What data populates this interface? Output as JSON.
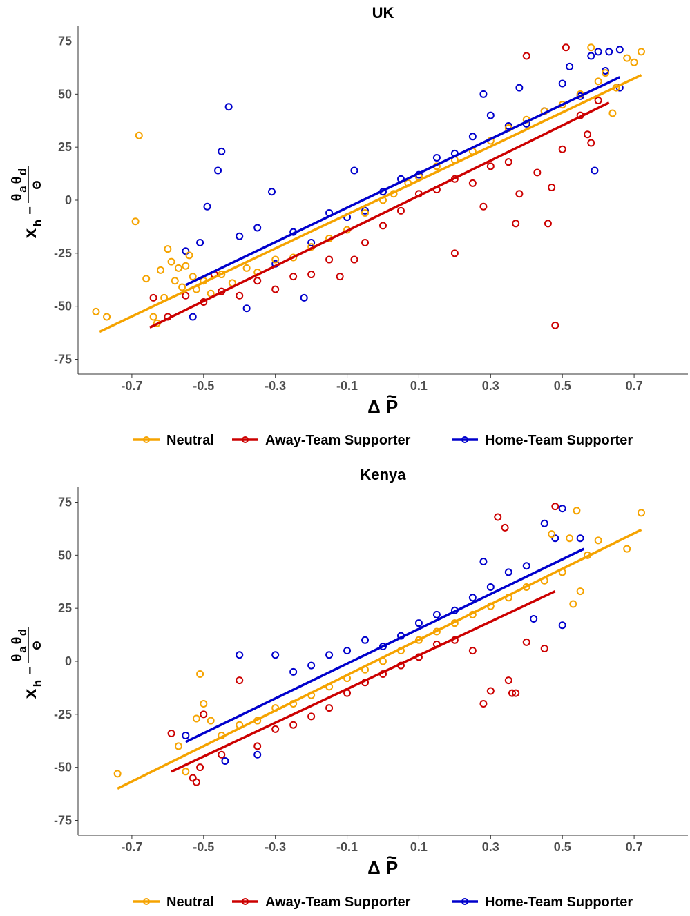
{
  "colors": {
    "neutral": "#F5A300",
    "away": "#CC0000",
    "home": "#0000CC"
  },
  "axis_text": {
    "xlabel": {
      "delta": "Δ",
      "p": "P",
      "tilde": "~"
    },
    "ylabel": {
      "x": "x",
      "h": "h",
      "minus": "−",
      "theta": "θ",
      "a": "a",
      "d": "d",
      "Theta": "Θ"
    }
  },
  "chart_data": [
    {
      "type": "scatter",
      "title": "UK",
      "xlim": [
        -0.85,
        0.85
      ],
      "ylim": [
        -82,
        82
      ],
      "x_ticks": [
        -0.7,
        -0.5,
        -0.3,
        -0.1,
        0.1,
        0.3,
        0.5,
        0.7
      ],
      "x_tick_labels": [
        "-0.7",
        "-0.5",
        "-0.3",
        "-0.1",
        "0.1",
        "0.3",
        "0.5",
        "0.7"
      ],
      "y_ticks": [
        -75,
        -50,
        -25,
        0,
        25,
        50,
        75
      ],
      "y_tick_labels": [
        "-75",
        "-50",
        "-25",
        "0",
        "25",
        "50",
        "75"
      ],
      "legend_position": "bottom",
      "grid": false,
      "series": [
        {
          "name": "Neutral",
          "color_key": "neutral",
          "fit": {
            "x": [
              -0.79,
              0.72
            ],
            "y": [
              -62,
              59
            ]
          },
          "points": [
            [
              -0.8,
              -52.5
            ],
            [
              -0.77,
              -55
            ],
            [
              -0.68,
              30.5
            ],
            [
              -0.69,
              -10
            ],
            [
              -0.66,
              -37
            ],
            [
              -0.64,
              -55
            ],
            [
              -0.63,
              -58
            ],
            [
              -0.62,
              -33
            ],
            [
              -0.61,
              -46
            ],
            [
              -0.6,
              -23
            ],
            [
              -0.59,
              -29
            ],
            [
              -0.58,
              -38
            ],
            [
              -0.57,
              -32
            ],
            [
              -0.56,
              -41
            ],
            [
              -0.55,
              -31
            ],
            [
              -0.54,
              -26
            ],
            [
              -0.53,
              -36
            ],
            [
              -0.52,
              -42
            ],
            [
              -0.5,
              -38
            ],
            [
              -0.48,
              -44
            ],
            [
              -0.45,
              -35
            ],
            [
              -0.42,
              -39
            ],
            [
              -0.38,
              -32
            ],
            [
              -0.35,
              -34
            ],
            [
              -0.3,
              -28
            ],
            [
              -0.25,
              -27
            ],
            [
              -0.2,
              -22
            ],
            [
              -0.15,
              -18
            ],
            [
              -0.1,
              -14
            ],
            [
              -0.05,
              -6
            ],
            [
              0.0,
              0
            ],
            [
              0.03,
              3
            ],
            [
              0.07,
              8
            ],
            [
              0.1,
              11
            ],
            [
              0.15,
              16
            ],
            [
              0.2,
              19
            ],
            [
              0.25,
              23
            ],
            [
              0.3,
              28
            ],
            [
              0.35,
              34
            ],
            [
              0.4,
              38
            ],
            [
              0.45,
              42
            ],
            [
              0.5,
              45
            ],
            [
              0.55,
              50
            ],
            [
              0.58,
              72
            ],
            [
              0.6,
              56
            ],
            [
              0.62,
              60
            ],
            [
              0.65,
              53
            ],
            [
              0.68,
              67
            ],
            [
              0.7,
              65
            ],
            [
              0.72,
              70
            ],
            [
              0.64,
              41
            ]
          ]
        },
        {
          "name": "Away-Team Supporter",
          "color_key": "away",
          "fit": {
            "x": [
              -0.65,
              0.63
            ],
            "y": [
              -60,
              46
            ]
          },
          "points": [
            [
              -0.64,
              -46
            ],
            [
              -0.6,
              -55
            ],
            [
              -0.55,
              -45
            ],
            [
              -0.5,
              -48
            ],
            [
              -0.45,
              -43
            ],
            [
              -0.4,
              -45
            ],
            [
              -0.35,
              -38
            ],
            [
              -0.3,
              -42
            ],
            [
              -0.25,
              -36
            ],
            [
              -0.2,
              -35
            ],
            [
              -0.15,
              -28
            ],
            [
              -0.12,
              -36
            ],
            [
              -0.08,
              -28
            ],
            [
              -0.05,
              -20
            ],
            [
              0.0,
              -12
            ],
            [
              0.05,
              -5
            ],
            [
              0.1,
              3
            ],
            [
              0.15,
              5
            ],
            [
              0.2,
              -25
            ],
            [
              0.2,
              10
            ],
            [
              0.25,
              8
            ],
            [
              0.28,
              -3
            ],
            [
              0.3,
              16
            ],
            [
              0.35,
              18
            ],
            [
              0.37,
              -11
            ],
            [
              0.38,
              3
            ],
            [
              0.4,
              68
            ],
            [
              0.43,
              13
            ],
            [
              0.46,
              -11
            ],
            [
              0.47,
              6
            ],
            [
              0.48,
              -59
            ],
            [
              0.5,
              24
            ],
            [
              0.51,
              72
            ],
            [
              0.55,
              40
            ],
            [
              0.57,
              31
            ],
            [
              0.58,
              27
            ],
            [
              0.6,
              47
            ],
            [
              -0.47,
              -35
            ]
          ]
        },
        {
          "name": "Home-Team Supporter",
          "color_key": "home",
          "fit": {
            "x": [
              -0.55,
              0.66
            ],
            "y": [
              -40,
              58
            ]
          },
          "points": [
            [
              -0.55,
              -24
            ],
            [
              -0.53,
              -55
            ],
            [
              -0.51,
              -20
            ],
            [
              -0.49,
              -3
            ],
            [
              -0.46,
              14
            ],
            [
              -0.45,
              23
            ],
            [
              -0.43,
              44
            ],
            [
              -0.4,
              -17
            ],
            [
              -0.38,
              -51
            ],
            [
              -0.35,
              -13
            ],
            [
              -0.31,
              4
            ],
            [
              -0.3,
              -30
            ],
            [
              -0.25,
              -15
            ],
            [
              -0.22,
              -46
            ],
            [
              -0.2,
              -20
            ],
            [
              -0.15,
              -6
            ],
            [
              -0.1,
              -8
            ],
            [
              -0.08,
              14
            ],
            [
              -0.05,
              -5
            ],
            [
              0.0,
              4
            ],
            [
              0.05,
              10
            ],
            [
              0.1,
              12
            ],
            [
              0.15,
              20
            ],
            [
              0.2,
              22
            ],
            [
              0.25,
              30
            ],
            [
              0.28,
              50
            ],
            [
              0.3,
              40
            ],
            [
              0.35,
              35
            ],
            [
              0.38,
              53
            ],
            [
              0.4,
              36
            ],
            [
              0.45,
              42
            ],
            [
              0.5,
              55
            ],
            [
              0.52,
              63
            ],
            [
              0.55,
              49
            ],
            [
              0.58,
              68
            ],
            [
              0.59,
              14
            ],
            [
              0.6,
              70
            ],
            [
              0.62,
              61
            ],
            [
              0.63,
              70
            ],
            [
              0.66,
              71
            ],
            [
              0.66,
              53
            ]
          ]
        }
      ]
    },
    {
      "type": "scatter",
      "title": "Kenya",
      "xlim": [
        -0.85,
        0.85
      ],
      "ylim": [
        -82,
        82
      ],
      "x_ticks": [
        -0.7,
        -0.5,
        -0.3,
        -0.1,
        0.1,
        0.3,
        0.5,
        0.7
      ],
      "x_tick_labels": [
        "-0.7",
        "-0.5",
        "-0.3",
        "-0.1",
        "0.1",
        "0.3",
        "0.5",
        "0.7"
      ],
      "y_ticks": [
        -75,
        -50,
        -25,
        0,
        25,
        50,
        75
      ],
      "y_tick_labels": [
        "-75",
        "-50",
        "-25",
        "0",
        "25",
        "50",
        "75"
      ],
      "legend_position": "bottom",
      "grid": false,
      "series": [
        {
          "name": "Neutral",
          "color_key": "neutral",
          "fit": {
            "x": [
              -0.74,
              0.72
            ],
            "y": [
              -60,
              62
            ]
          },
          "points": [
            [
              -0.74,
              -53
            ],
            [
              -0.57,
              -40
            ],
            [
              -0.55,
              -52
            ],
            [
              -0.52,
              -27
            ],
            [
              -0.51,
              -6
            ],
            [
              -0.5,
              -20
            ],
            [
              -0.48,
              -28
            ],
            [
              -0.45,
              -35
            ],
            [
              -0.4,
              -30
            ],
            [
              -0.35,
              -28
            ],
            [
              -0.3,
              -22
            ],
            [
              -0.25,
              -20
            ],
            [
              -0.2,
              -16
            ],
            [
              -0.15,
              -12
            ],
            [
              -0.1,
              -8
            ],
            [
              -0.05,
              -4
            ],
            [
              0.0,
              0
            ],
            [
              0.05,
              5
            ],
            [
              0.1,
              10
            ],
            [
              0.15,
              14
            ],
            [
              0.2,
              18
            ],
            [
              0.25,
              22
            ],
            [
              0.3,
              26
            ],
            [
              0.35,
              30
            ],
            [
              0.4,
              35
            ],
            [
              0.45,
              38
            ],
            [
              0.5,
              42
            ],
            [
              0.52,
              58
            ],
            [
              0.53,
              27
            ],
            [
              0.54,
              71
            ],
            [
              0.55,
              33
            ],
            [
              0.57,
              50
            ],
            [
              0.6,
              57
            ],
            [
              0.68,
              53
            ],
            [
              0.72,
              70
            ],
            [
              0.47,
              60
            ]
          ]
        },
        {
          "name": "Away-Team Supporter",
          "color_key": "away",
          "fit": {
            "x": [
              -0.59,
              0.48
            ],
            "y": [
              -52,
              33
            ]
          },
          "points": [
            [
              -0.59,
              -34
            ],
            [
              -0.53,
              -55
            ],
            [
              -0.52,
              -57
            ],
            [
              -0.51,
              -50
            ],
            [
              -0.5,
              -25
            ],
            [
              -0.45,
              -44
            ],
            [
              -0.4,
              -9
            ],
            [
              -0.35,
              -40
            ],
            [
              -0.3,
              -32
            ],
            [
              -0.25,
              -30
            ],
            [
              -0.2,
              -26
            ],
            [
              -0.15,
              -22
            ],
            [
              -0.1,
              -15
            ],
            [
              -0.05,
              -10
            ],
            [
              0.0,
              -6
            ],
            [
              0.05,
              -2
            ],
            [
              0.1,
              2
            ],
            [
              0.15,
              8
            ],
            [
              0.2,
              10
            ],
            [
              0.25,
              5
            ],
            [
              0.28,
              -20
            ],
            [
              0.3,
              -14
            ],
            [
              0.32,
              68
            ],
            [
              0.34,
              63
            ],
            [
              0.35,
              -9
            ],
            [
              0.36,
              -15
            ],
            [
              0.37,
              -15
            ],
            [
              0.4,
              9
            ],
            [
              0.45,
              6
            ],
            [
              0.48,
              73
            ]
          ]
        },
        {
          "name": "Home-Team Supporter",
          "color_key": "home",
          "fit": {
            "x": [
              -0.55,
              0.56
            ],
            "y": [
              -38,
              53
            ]
          },
          "points": [
            [
              -0.55,
              -35
            ],
            [
              -0.44,
              -47
            ],
            [
              -0.4,
              3
            ],
            [
              -0.35,
              -44
            ],
            [
              -0.3,
              3
            ],
            [
              -0.25,
              -5
            ],
            [
              -0.2,
              -2
            ],
            [
              -0.15,
              3
            ],
            [
              -0.1,
              5
            ],
            [
              -0.05,
              10
            ],
            [
              0.0,
              7
            ],
            [
              0.05,
              12
            ],
            [
              0.1,
              18
            ],
            [
              0.15,
              22
            ],
            [
              0.2,
              24
            ],
            [
              0.25,
              30
            ],
            [
              0.28,
              47
            ],
            [
              0.3,
              35
            ],
            [
              0.35,
              42
            ],
            [
              0.4,
              45
            ],
            [
              0.45,
              65
            ],
            [
              0.48,
              58
            ],
            [
              0.5,
              72
            ],
            [
              0.5,
              17
            ],
            [
              0.55,
              58
            ],
            [
              0.42,
              20
            ]
          ]
        }
      ]
    }
  ]
}
